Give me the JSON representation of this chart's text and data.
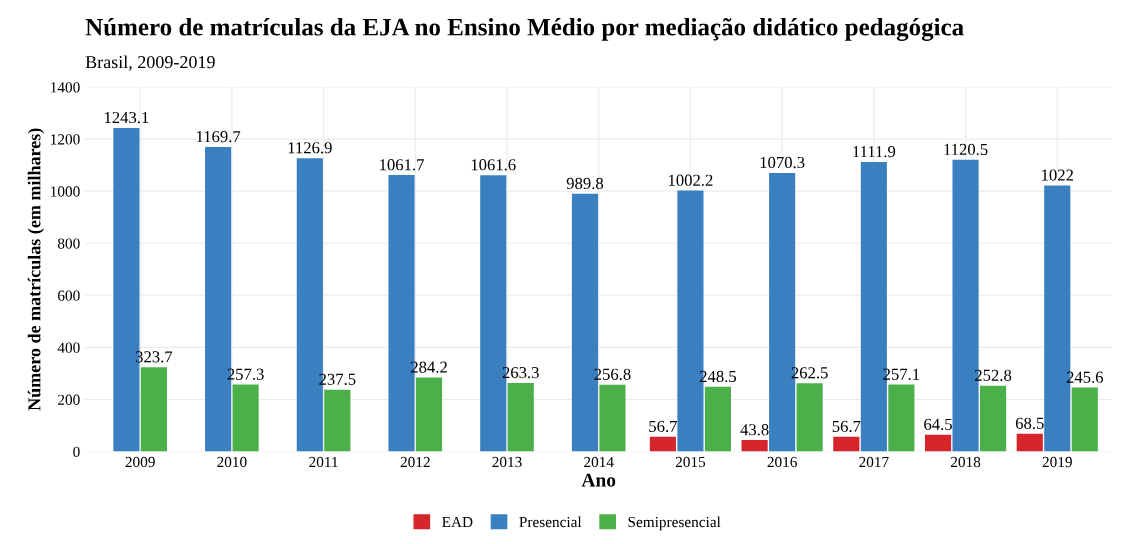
{
  "chart_data": {
    "type": "bar",
    "title": "Número de matrículas da EJA no Ensino Médio por mediação didático pedagógica",
    "subtitle": "Brasil, 2009-2019",
    "xlabel": "Ano",
    "ylabel": "Número de matrículas (em milhares)",
    "categories": [
      "2009",
      "2010",
      "2011",
      "2012",
      "2013",
      "2014",
      "2015",
      "2016",
      "2017",
      "2018",
      "2019"
    ],
    "series": [
      {
        "name": "EAD",
        "color": "#d7262b",
        "values": [
          null,
          null,
          null,
          null,
          null,
          null,
          56.7,
          43.8,
          56.7,
          64.5,
          68.5
        ]
      },
      {
        "name": "Presencial",
        "color": "#3a80c0",
        "values": [
          1243.1,
          1169.7,
          1126.9,
          1061.7,
          1061.6,
          989.8,
          1002.2,
          1070.3,
          1111.9,
          1120.5,
          1022
        ]
      },
      {
        "name": "Semipresencial",
        "color": "#4cb04a",
        "values": [
          323.7,
          257.3,
          237.5,
          284.2,
          263.3,
          256.8,
          248.5,
          262.5,
          257.1,
          252.8,
          245.6
        ]
      }
    ],
    "ylim": [
      0,
      1400
    ],
    "yticks": [
      0,
      200,
      400,
      600,
      800,
      1000,
      1200,
      1400
    ],
    "grid": true,
    "legend": "bottom",
    "data_labels": true
  }
}
